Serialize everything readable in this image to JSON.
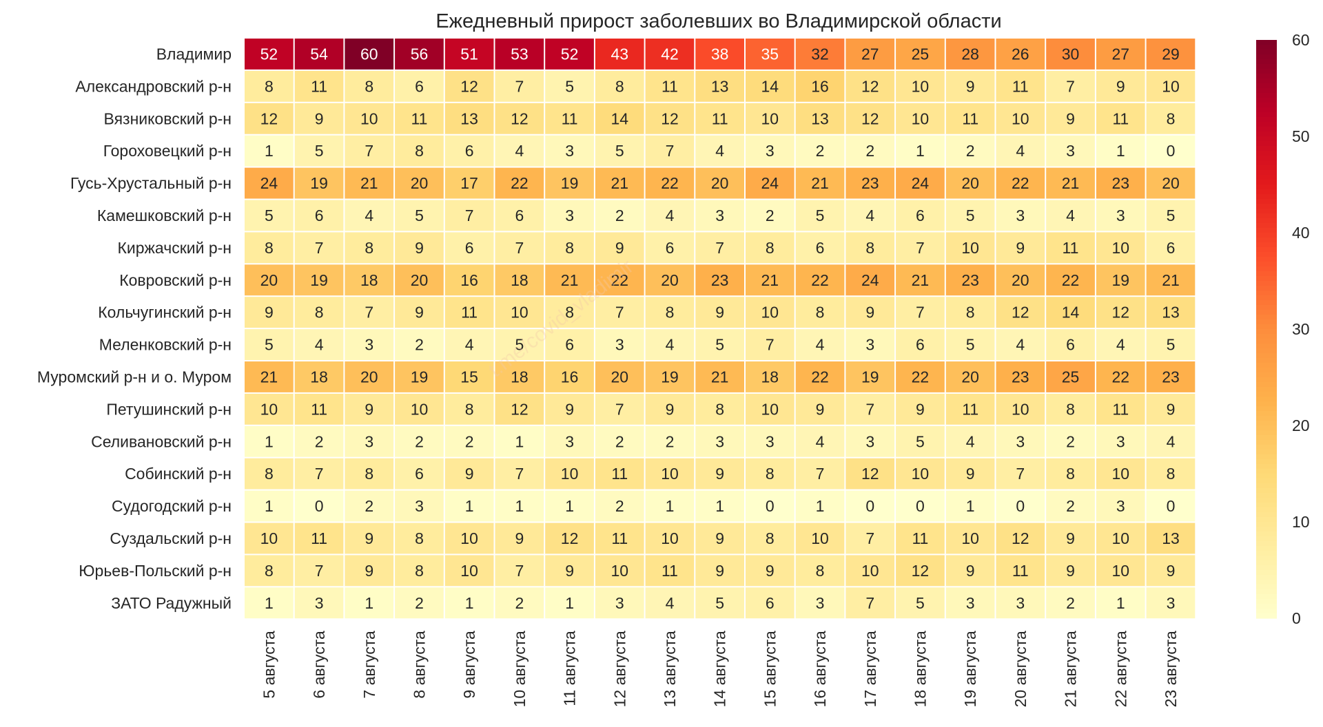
{
  "chart_data": {
    "type": "heatmap",
    "title": "Ежедневный прирост заболевших во Владимирской области",
    "watermark": "t.me/covid_vladimir",
    "columns": [
      "5 августа",
      "6 августа",
      "7 августа",
      "8 августа",
      "9 августа",
      "10 августа",
      "11 августа",
      "12 августа",
      "13 августа",
      "14 августа",
      "15 августа",
      "16 августа",
      "17 августа",
      "18 августа",
      "19 августа",
      "20 августа",
      "21 августа",
      "22 августа",
      "23 августа"
    ],
    "rows": [
      "Владимир",
      "Александровский р-н",
      "Вязниковский р-н",
      "Гороховецкий р-н",
      "Гусь-Хрустальный р-н",
      "Камешковский р-н",
      "Киржачский р-н",
      "Ковровский р-н",
      "Кольчугинский р-н",
      "Меленковский р-н",
      "Муромский р-н и о. Муром",
      "Петушинский р-н",
      "Селивановский р-н",
      "Собинский р-н",
      "Судогодский р-н",
      "Суздальский р-н",
      "Юрьев-Польский р-н",
      "ЗАТО Радужный"
    ],
    "values": [
      [
        52,
        54,
        60,
        56,
        51,
        53,
        52,
        43,
        42,
        38,
        35,
        32,
        27,
        25,
        28,
        26,
        30,
        27,
        29
      ],
      [
        8,
        11,
        8,
        6,
        12,
        7,
        5,
        8,
        11,
        13,
        14,
        16,
        12,
        10,
        9,
        11,
        7,
        9,
        10
      ],
      [
        12,
        9,
        10,
        11,
        13,
        12,
        11,
        14,
        12,
        11,
        10,
        13,
        12,
        10,
        11,
        10,
        9,
        11,
        8
      ],
      [
        1,
        5,
        7,
        8,
        6,
        4,
        3,
        5,
        7,
        4,
        3,
        2,
        2,
        1,
        2,
        4,
        3,
        1,
        0
      ],
      [
        24,
        19,
        21,
        20,
        17,
        22,
        19,
        21,
        22,
        20,
        24,
        21,
        23,
        24,
        20,
        22,
        21,
        23,
        20
      ],
      [
        5,
        6,
        4,
        5,
        7,
        6,
        3,
        2,
        4,
        3,
        2,
        5,
        4,
        6,
        5,
        3,
        4,
        3,
        5
      ],
      [
        8,
        7,
        8,
        9,
        6,
        7,
        8,
        9,
        6,
        7,
        8,
        6,
        8,
        7,
        10,
        9,
        11,
        10,
        6
      ],
      [
        20,
        19,
        18,
        20,
        16,
        18,
        21,
        22,
        20,
        23,
        21,
        22,
        24,
        21,
        23,
        20,
        22,
        19,
        21
      ],
      [
        9,
        8,
        7,
        9,
        11,
        10,
        8,
        7,
        8,
        9,
        10,
        8,
        9,
        7,
        8,
        12,
        14,
        12,
        13
      ],
      [
        5,
        4,
        3,
        2,
        4,
        5,
        6,
        3,
        4,
        5,
        7,
        4,
        3,
        6,
        5,
        4,
        6,
        4,
        5
      ],
      [
        21,
        18,
        20,
        19,
        15,
        18,
        16,
        20,
        19,
        21,
        18,
        22,
        19,
        22,
        20,
        23,
        25,
        22,
        23
      ],
      [
        10,
        11,
        9,
        10,
        8,
        12,
        9,
        7,
        9,
        8,
        10,
        9,
        7,
        9,
        11,
        10,
        8,
        11,
        9
      ],
      [
        1,
        2,
        3,
        2,
        2,
        1,
        3,
        2,
        2,
        3,
        3,
        4,
        3,
        5,
        4,
        3,
        2,
        3,
        4
      ],
      [
        8,
        7,
        8,
        6,
        9,
        7,
        10,
        11,
        10,
        9,
        8,
        7,
        12,
        10,
        9,
        7,
        8,
        10,
        8
      ],
      [
        1,
        0,
        2,
        3,
        1,
        1,
        1,
        2,
        1,
        1,
        0,
        1,
        0,
        0,
        1,
        0,
        2,
        3,
        0
      ],
      [
        10,
        11,
        9,
        8,
        10,
        9,
        12,
        11,
        10,
        9,
        8,
        10,
        7,
        11,
        10,
        12,
        9,
        10,
        13
      ],
      [
        8,
        7,
        9,
        8,
        10,
        7,
        9,
        10,
        11,
        9,
        9,
        8,
        10,
        12,
        9,
        11,
        9,
        10,
        9
      ],
      [
        1,
        3,
        1,
        2,
        1,
        2,
        1,
        3,
        4,
        5,
        6,
        3,
        7,
        5,
        3,
        3,
        2,
        1,
        3
      ]
    ],
    "vmin": 0,
    "vmax": 60,
    "colormap": "YlOrRd",
    "colorbar_ticks": [
      0,
      10,
      20,
      30,
      40,
      50,
      60
    ],
    "colorbar_tick_labels": [
      "0",
      "10",
      "20",
      "30",
      "40",
      "50",
      "60"
    ]
  }
}
